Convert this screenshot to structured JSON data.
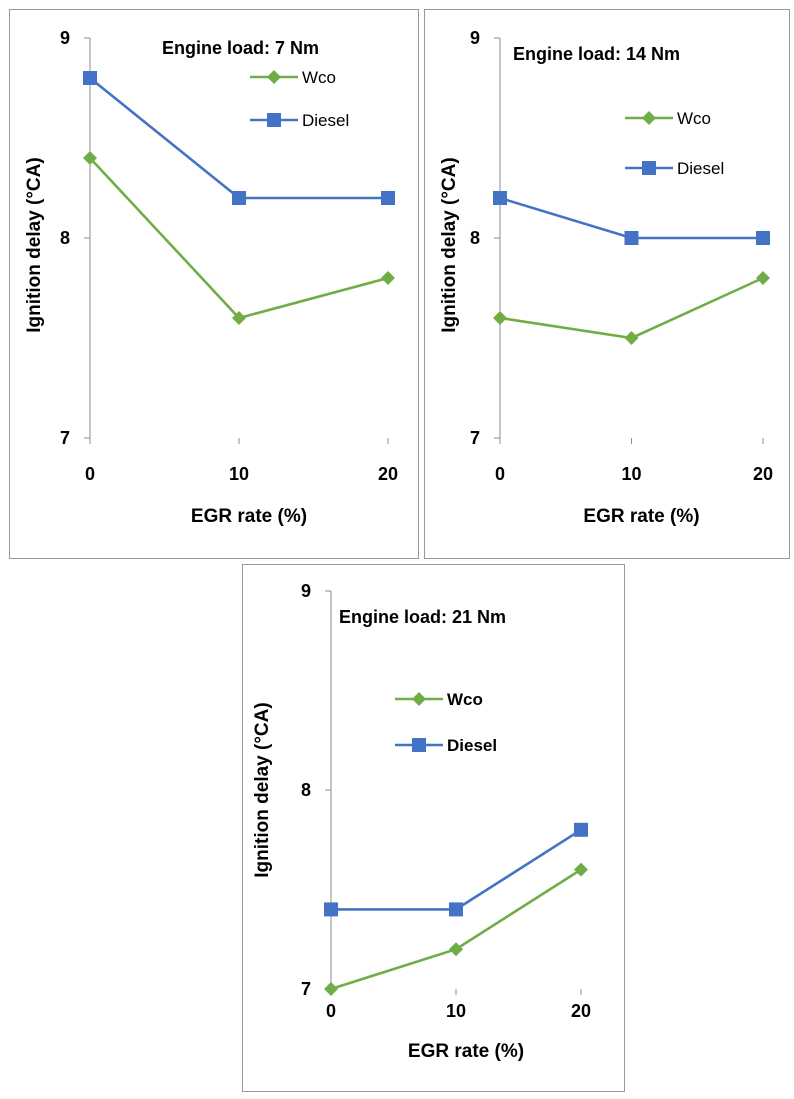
{
  "chart_data": [
    {
      "type": "line",
      "title": "Engine load: 7 Nm",
      "xlabel": "EGR rate (%)",
      "ylabel": "Ignition delay (°CA)",
      "x": [
        0,
        10,
        20
      ],
      "xticks": [
        "0",
        "10",
        "20"
      ],
      "yticks": [
        "7",
        "8",
        "9"
      ],
      "ylim": [
        7,
        9
      ],
      "xlim": [
        0,
        20
      ],
      "grid": false,
      "legend_placement": "top-right",
      "series": [
        {
          "name": "Wco",
          "values": [
            8.4,
            7.6,
            7.8
          ],
          "color": "#70ad47",
          "marker": "diamond"
        },
        {
          "name": "Diesel",
          "values": [
            8.8,
            8.2,
            8.2
          ],
          "color": "#4472c4",
          "marker": "square"
        }
      ]
    },
    {
      "type": "line",
      "title": "Engine load: 14 Nm",
      "xlabel": "EGR rate (%)",
      "ylabel": "Ignition delay (°CA)",
      "x": [
        0,
        10,
        20
      ],
      "xticks": [
        "0",
        "10",
        "20"
      ],
      "yticks": [
        "7",
        "8",
        "9"
      ],
      "ylim": [
        7,
        9
      ],
      "xlim": [
        0,
        20
      ],
      "grid": false,
      "legend_placement": "right",
      "series": [
        {
          "name": "Wco",
          "values": [
            7.6,
            7.5,
            7.8
          ],
          "color": "#70ad47",
          "marker": "diamond"
        },
        {
          "name": "Diesel",
          "values": [
            8.2,
            8.0,
            8.0
          ],
          "color": "#4472c4",
          "marker": "square"
        }
      ]
    },
    {
      "type": "line",
      "title": "Engine load: 21 Nm",
      "xlabel": "EGR rate (%)",
      "ylabel": "Ignition delay (°CA)",
      "x": [
        0,
        10,
        20
      ],
      "xticks": [
        "0",
        "10",
        "20"
      ],
      "yticks": [
        "7",
        "8",
        "9"
      ],
      "ylim": [
        7,
        9
      ],
      "xlim": [
        0,
        20
      ],
      "grid": false,
      "legend_placement": "center",
      "series": [
        {
          "name": "Wco",
          "values": [
            7.0,
            7.2,
            7.6
          ],
          "color": "#70ad47",
          "marker": "diamond"
        },
        {
          "name": "Diesel",
          "values": [
            7.4,
            7.4,
            7.8
          ],
          "color": "#4472c4",
          "marker": "square"
        }
      ]
    }
  ]
}
